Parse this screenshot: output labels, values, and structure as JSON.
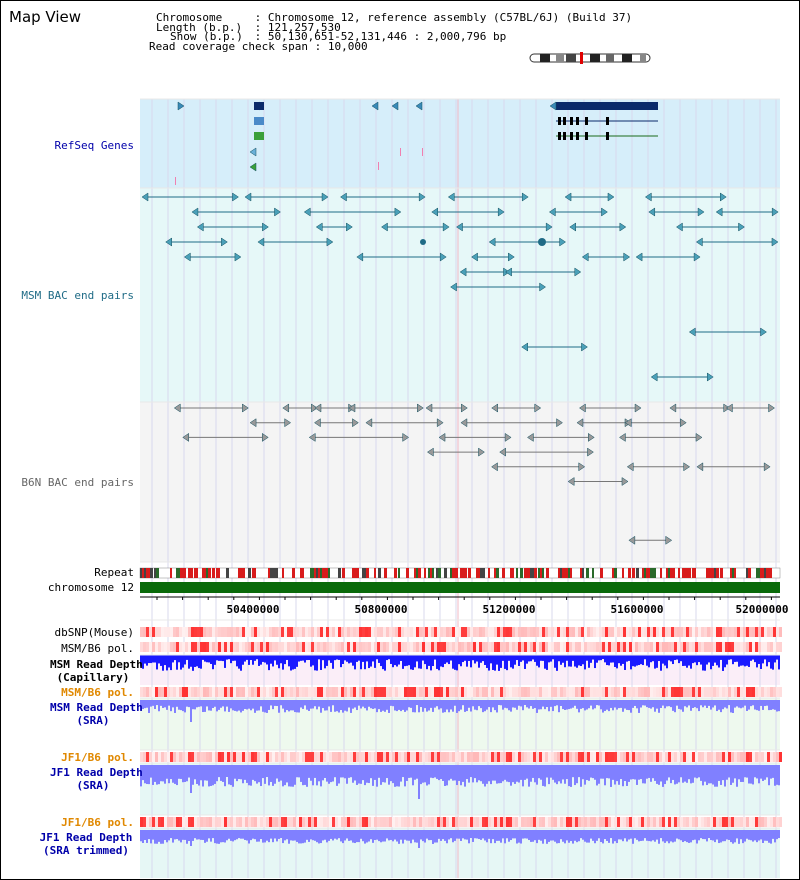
{
  "title": "Map View",
  "header": {
    "chromosome_key": "Chromosome",
    "chromosome_value": "Chromosome 12, reference assembly (C57BL/6J) (Build 37)",
    "length_key": "Length (b.p.)",
    "length_value": "121,257,530",
    "show_key": "Show (b.p.)",
    "show_value": "50,130,651-52,131,446 : 2,000,796 bp",
    "coverage_key": "Read coverage check span",
    "coverage_value": "10,000"
  },
  "tracks": {
    "refseq": "RefSeq Genes",
    "msm_bac": "MSM BAC end pairs",
    "b6n_bac": "B6N BAC end pairs",
    "repeat": "Repeat",
    "chromosome": "chromosome 12",
    "dbsnp": "dbSNP(Mouse)",
    "msm_b6_pol_1": "MSM/B6 pol.",
    "msm_read_depth_cap_1": "MSM Read Depth",
    "msm_read_depth_cap_2": "(Capillary)",
    "msm_b6_pol_2": "MSM/B6 pol.",
    "msm_read_depth_sra_1": "MSM Read Depth",
    "msm_read_depth_sra_2": "(SRA)",
    "jf1_b6_pol_1": "JF1/B6 pol.",
    "jf1_read_depth_sra_1": "JF1 Read Depth",
    "jf1_read_depth_sra_2": "(SRA)",
    "jf1_b6_pol_2": "JF1/B6 pol.",
    "jf1_read_depth_trim_1": "JF1 Read Depth",
    "jf1_read_depth_trim_2": "(SRA trimmed)"
  },
  "axis": {
    "ticks": [
      "50400000",
      "50800000",
      "51200000",
      "51600000",
      "52000000"
    ]
  },
  "colors": {
    "refseq_bg": "#d6eefa",
    "msm_bg": "#e6f8f8",
    "b6n_bg": "#f4f4f4",
    "gene": "#0a2a6a",
    "msm_pair": "#1f6b86",
    "b6n_pair": "#777777",
    "chromosome_bar": "#0a6a0a",
    "depth_capillary": "#1a1aff",
    "depth_sra": "#8080ff",
    "pol_label": "#e08800",
    "depth_label": "#0000aa"
  }
}
